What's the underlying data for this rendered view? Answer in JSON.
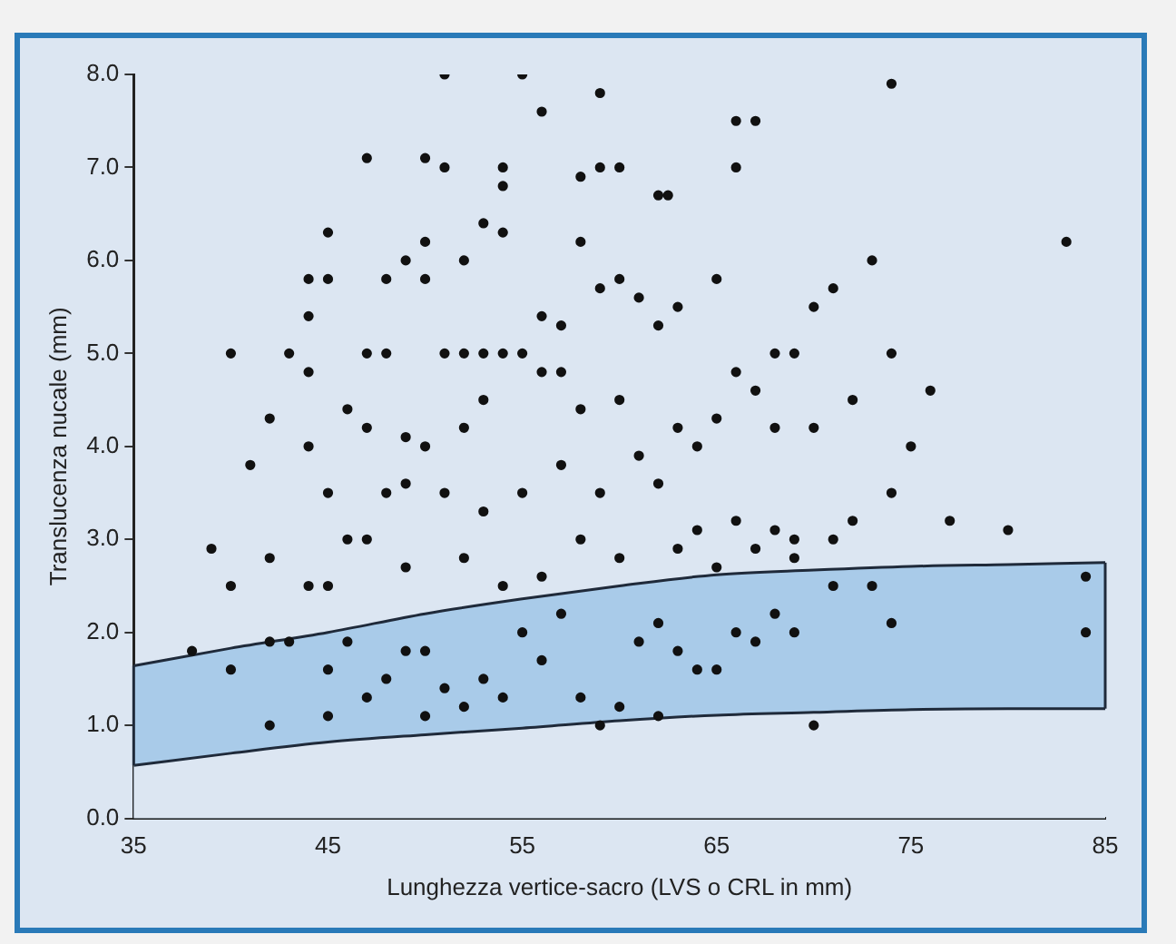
{
  "chart_data": {
    "type": "scatter",
    "xlabel": "Lunghezza vertice-sacro (LVS o CRL in mm)",
    "ylabel": "Translucenza nucale (mm)",
    "xlim": [
      35,
      85
    ],
    "xticks": [
      35,
      45,
      55,
      65,
      75,
      85
    ],
    "ylim": [
      0,
      8
    ],
    "yticks": [
      {
        "value": 0,
        "label": "0.0"
      },
      {
        "value": 1,
        "label": "1.0"
      },
      {
        "value": 2,
        "label": "2.0"
      },
      {
        "value": 3,
        "label": "3.0"
      },
      {
        "value": 4,
        "label": "4.0"
      },
      {
        "value": 5,
        "label": "5.0"
      },
      {
        "value": 6,
        "label": "6.0"
      },
      {
        "value": 7,
        "label": "7.0"
      },
      {
        "value": 8,
        "label": "8.0"
      }
    ],
    "grid": false,
    "legend": false,
    "marker": "circle",
    "series": [
      {
        "type": "area",
        "marker": "none",
        "color": "#a9cbe9",
        "x": [
          35,
          40,
          45,
          50,
          55,
          60,
          65,
          70,
          75,
          80,
          85
        ],
        "values": [
          1.64,
          1.83,
          2.0,
          2.2,
          2.36,
          2.5,
          2.62,
          2.67,
          2.71,
          2.73,
          2.75
        ]
      },
      {
        "type": "area",
        "marker": "none",
        "color": "#dce6f2",
        "x": [
          35,
          40,
          45,
          50,
          55,
          60,
          65,
          70,
          75,
          80,
          85
        ],
        "values": [
          0.57,
          0.7,
          0.82,
          0.9,
          0.97,
          1.05,
          1.11,
          1.14,
          1.17,
          1.18,
          1.18
        ]
      },
      {
        "type": "scatter",
        "color": "#111111",
        "x": [
          51,
          55,
          74,
          59,
          56,
          60,
          47,
          50,
          51,
          54,
          54,
          53,
          54,
          58,
          59,
          66,
          67,
          66,
          62,
          62.5,
          83,
          73,
          50,
          49,
          52,
          58,
          59,
          44,
          45,
          45,
          48,
          50,
          60,
          65,
          71,
          70,
          61,
          57,
          56,
          62,
          63,
          44,
          47,
          48,
          40,
          43,
          51,
          52,
          53,
          54,
          55,
          56,
          57,
          68,
          69,
          74,
          76,
          72,
          66,
          67,
          42,
          44,
          46,
          47,
          49,
          50,
          52,
          53,
          58,
          60,
          63,
          64,
          65,
          68,
          70,
          75,
          41,
          44,
          45,
          46,
          48,
          49,
          51,
          53,
          55,
          57,
          59,
          61,
          62,
          64,
          66,
          67,
          68,
          69,
          71,
          72,
          74,
          77,
          80,
          39,
          40,
          42,
          44,
          45,
          47,
          49,
          52,
          54,
          56,
          58,
          60,
          63,
          65,
          69,
          73,
          38,
          40,
          42,
          43,
          45,
          46,
          47,
          48,
          49,
          50,
          51,
          52,
          53,
          54,
          55,
          56,
          57,
          58,
          59,
          60,
          61,
          62,
          63,
          64,
          65,
          66,
          67,
          68,
          69,
          70,
          71,
          74,
          84,
          84,
          42,
          45,
          50,
          62
        ],
        "values": [
          8.0,
          8.0,
          7.9,
          7.8,
          7.6,
          7.0,
          7.1,
          7.1,
          7.0,
          7.0,
          6.8,
          6.4,
          6.3,
          6.9,
          7.0,
          7.5,
          7.5,
          7.0,
          6.7,
          6.7,
          6.2,
          6.0,
          6.2,
          6.0,
          6.0,
          6.2,
          5.7,
          5.8,
          5.8,
          6.3,
          5.8,
          5.8,
          5.8,
          5.8,
          5.7,
          5.5,
          5.6,
          5.3,
          5.4,
          5.3,
          5.5,
          5.4,
          5.0,
          5.0,
          5.0,
          5.0,
          5.0,
          5.0,
          5.0,
          5.0,
          5.0,
          4.8,
          4.8,
          5.0,
          5.0,
          5.0,
          4.6,
          4.5,
          4.8,
          4.6,
          4.3,
          4.8,
          4.4,
          4.2,
          4.1,
          4.0,
          4.2,
          4.5,
          4.4,
          4.5,
          4.2,
          4.0,
          4.3,
          4.2,
          4.2,
          4.0,
          3.8,
          4.0,
          3.5,
          3.0,
          3.5,
          3.6,
          3.5,
          3.3,
          3.5,
          3.8,
          3.5,
          3.9,
          3.6,
          3.1,
          3.2,
          2.9,
          3.1,
          3.0,
          3.0,
          3.2,
          3.5,
          3.2,
          3.1,
          2.9,
          2.5,
          2.8,
          2.5,
          2.5,
          3.0,
          2.7,
          2.8,
          2.5,
          2.6,
          3.0,
          2.8,
          2.9,
          2.7,
          2.8,
          2.5,
          1.8,
          1.6,
          1.9,
          1.9,
          1.6,
          1.9,
          1.3,
          1.5,
          1.8,
          1.8,
          1.4,
          1.2,
          1.5,
          1.3,
          2.0,
          1.7,
          2.2,
          1.3,
          1.0,
          1.2,
          1.9,
          2.1,
          1.8,
          1.6,
          1.6,
          2.0,
          1.9,
          2.2,
          2.0,
          1.0,
          2.5,
          2.1,
          2.6,
          2.0,
          1.0,
          1.1,
          1.1,
          1.1
        ]
      }
    ]
  }
}
